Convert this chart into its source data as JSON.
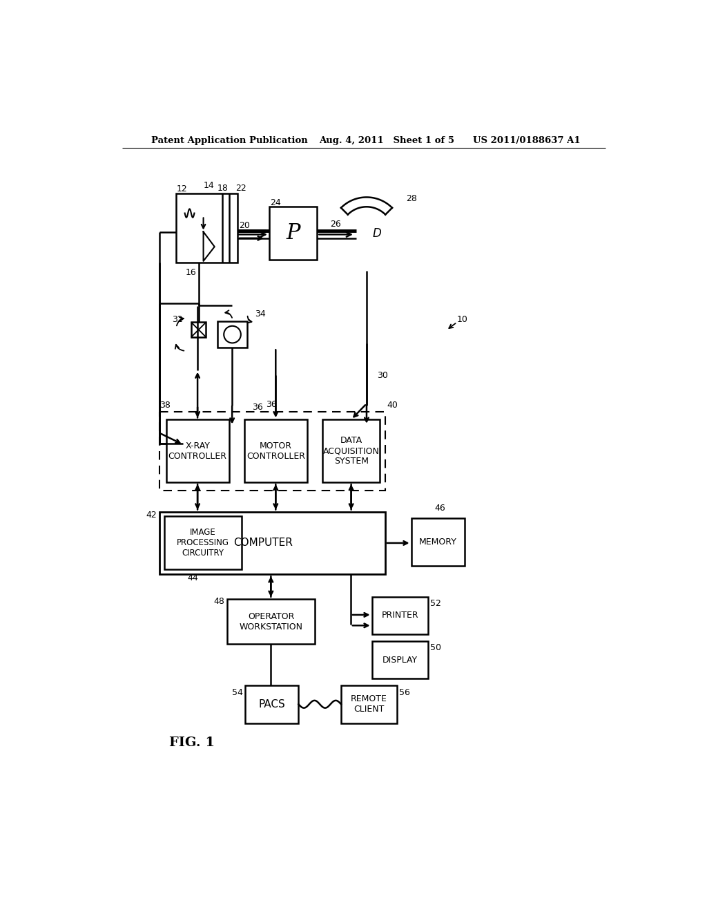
{
  "title_left": "Patent Application Publication",
  "title_center": "Aug. 4, 2011   Sheet 1 of 5",
  "title_right": "US 2011/0188637 A1",
  "fig_label": "FIG. 1",
  "bg": "#ffffff",
  "lc": "#000000"
}
